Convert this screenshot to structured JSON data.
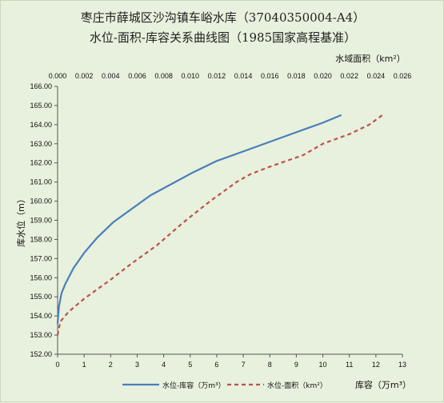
{
  "chart_data": {
    "type": "line",
    "title": "枣庄市薛城区沙沟镇车峪水库（37040350004-A4）",
    "subtitle": "水位-面积-库容关系曲线图（1985国家高程基准）",
    "ylabel": "库水位（m）",
    "xlabel": "库容（万m³）",
    "x2label": "水域面积（km²）",
    "ylim": [
      152,
      166
    ],
    "xlim": [
      0,
      13
    ],
    "x2lim": [
      0,
      0.026
    ],
    "y_ticks": [
      "152.00",
      "153.00",
      "154.00",
      "155.00",
      "156.00",
      "157.00",
      "158.00",
      "159.00",
      "160.00",
      "161.00",
      "162.00",
      "163.00",
      "164.00",
      "165.00",
      "166.00"
    ],
    "x_ticks": [
      "0",
      "1",
      "2",
      "3",
      "4",
      "5",
      "6",
      "7",
      "8",
      "9",
      "10",
      "11",
      "12",
      "13"
    ],
    "x2_ticks": [
      "0.000",
      "0.002",
      "0.004",
      "0.006",
      "0.008",
      "0.010",
      "0.012",
      "0.014",
      "0.016",
      "0.018",
      "0.020",
      "0.022",
      "0.024",
      "0.026"
    ],
    "series": [
      {
        "name": "水位-库容（万m³）",
        "axis": "bottom",
        "color": "#4a7ebb",
        "style": "solid",
        "points": [
          [
            0,
            153.6
          ],
          [
            0.05,
            154.5
          ],
          [
            0.15,
            155.2
          ],
          [
            0.3,
            155.7
          ],
          [
            0.6,
            156.5
          ],
          [
            1.0,
            157.3
          ],
          [
            1.5,
            158.1
          ],
          [
            2.1,
            158.9
          ],
          [
            2.8,
            159.6
          ],
          [
            3.5,
            160.3
          ],
          [
            4.3,
            160.9
          ],
          [
            5.1,
            161.5
          ],
          [
            6.0,
            162.1
          ],
          [
            7.0,
            162.6
          ],
          [
            8.0,
            163.1
          ],
          [
            9.0,
            163.6
          ],
          [
            10.0,
            164.1
          ],
          [
            10.7,
            164.5
          ]
        ]
      },
      {
        "name": "水位-面积（km²）",
        "axis": "top",
        "color": "#c0504d",
        "style": "dashed",
        "points": [
          [
            0,
            153.0
          ],
          [
            0.0002,
            153.7
          ],
          [
            0.0008,
            154.2
          ],
          [
            0.002,
            154.9
          ],
          [
            0.004,
            155.9
          ],
          [
            0.0055,
            156.7
          ],
          [
            0.0075,
            157.7
          ],
          [
            0.0095,
            158.9
          ],
          [
            0.0115,
            160.0
          ],
          [
            0.0135,
            161.0
          ],
          [
            0.0145,
            161.4
          ],
          [
            0.016,
            161.8
          ],
          [
            0.0185,
            162.4
          ],
          [
            0.02,
            163.0
          ],
          [
            0.022,
            163.5
          ],
          [
            0.0235,
            164.0
          ],
          [
            0.0245,
            164.5
          ]
        ]
      }
    ],
    "legend_position": "bottom",
    "grid": false
  }
}
